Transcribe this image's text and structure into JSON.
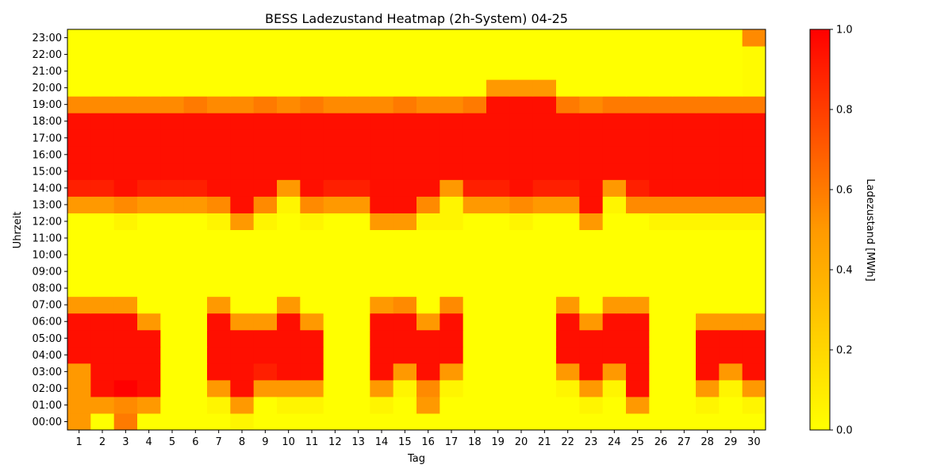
{
  "chart_data": {
    "type": "heatmap",
    "title": "BESS Ladezustand Heatmap (2h-System) 04-25",
    "xlabel": "Tag",
    "ylabel": "Uhrzeit",
    "x": [
      1,
      2,
      3,
      4,
      5,
      6,
      7,
      8,
      9,
      10,
      11,
      12,
      13,
      14,
      15,
      16,
      17,
      18,
      19,
      20,
      21,
      22,
      23,
      24,
      25,
      26,
      27,
      28,
      29,
      30
    ],
    "y": [
      "00:00",
      "01:00",
      "02:00",
      "03:00",
      "04:00",
      "05:00",
      "06:00",
      "07:00",
      "08:00",
      "09:00",
      "10:00",
      "11:00",
      "12:00",
      "13:00",
      "14:00",
      "15:00",
      "16:00",
      "17:00",
      "18:00",
      "19:00",
      "20:00",
      "21:00",
      "22:00",
      "23:00"
    ],
    "values": [
      [
        0.5,
        0,
        0.6,
        0,
        0,
        0,
        0,
        0.05,
        0,
        0,
        0,
        0,
        0,
        0,
        0,
        0,
        0,
        0,
        0,
        0,
        0,
        0,
        0,
        0,
        0,
        0,
        0,
        0,
        0,
        0
      ],
      [
        0.5,
        0.5,
        0.55,
        0.5,
        0,
        0,
        0.05,
        0.5,
        0,
        0.05,
        0.05,
        0,
        0,
        0.05,
        0,
        0.5,
        0,
        0,
        0,
        0,
        0,
        0,
        0.05,
        0,
        0.5,
        0,
        0,
        0.05,
        0,
        0.05
      ],
      [
        0.5,
        0.95,
        1.0,
        0.95,
        0,
        0,
        0.5,
        0.95,
        0.5,
        0.5,
        0.5,
        0,
        0,
        0.5,
        0.05,
        0.55,
        0.05,
        0,
        0,
        0,
        0,
        0.05,
        0.5,
        0.05,
        0.95,
        0,
        0,
        0.5,
        0.05,
        0.5
      ],
      [
        0.5,
        0.95,
        0.95,
        0.95,
        0,
        0,
        0.95,
        0.95,
        0.9,
        0.95,
        0.95,
        0,
        0,
        0.95,
        0.5,
        0.95,
        0.5,
        0,
        0,
        0,
        0,
        0.5,
        0.95,
        0.5,
        0.95,
        0,
        0,
        0.95,
        0.5,
        0.95
      ],
      [
        0.95,
        0.95,
        0.95,
        0.95,
        0,
        0,
        0.95,
        0.95,
        0.95,
        0.95,
        0.95,
        0,
        0,
        0.95,
        0.95,
        0.95,
        0.95,
        0,
        0,
        0,
        0,
        0.95,
        0.95,
        0.95,
        0.95,
        0,
        0,
        0.95,
        0.95,
        0.95
      ],
      [
        0.95,
        0.95,
        0.95,
        0.95,
        0,
        0,
        0.95,
        0.95,
        0.95,
        0.95,
        0.95,
        0,
        0,
        0.95,
        0.95,
        0.95,
        0.95,
        0,
        0,
        0,
        0,
        0.95,
        0.95,
        0.95,
        0.95,
        0,
        0,
        0.95,
        0.95,
        0.95
      ],
      [
        0.95,
        0.95,
        0.95,
        0.5,
        0,
        0,
        0.95,
        0.5,
        0.5,
        0.95,
        0.5,
        0,
        0,
        0.95,
        0.95,
        0.5,
        0.95,
        0,
        0,
        0,
        0,
        0.95,
        0.5,
        0.95,
        0.95,
        0,
        0,
        0.5,
        0.5,
        0.5
      ],
      [
        0.5,
        0.5,
        0.5,
        0,
        0,
        0,
        0.5,
        0,
        0,
        0.5,
        0,
        0,
        0,
        0.5,
        0.55,
        0,
        0.55,
        0,
        0,
        0,
        0,
        0.5,
        0,
        0.5,
        0.5,
        0,
        0,
        0,
        0,
        0
      ],
      [
        0,
        0,
        0,
        0,
        0,
        0,
        0,
        0,
        0,
        0,
        0,
        0,
        0,
        0,
        0,
        0,
        0,
        0,
        0,
        0,
        0,
        0,
        0,
        0,
        0,
        0,
        0,
        0,
        0,
        0
      ],
      [
        0,
        0,
        0,
        0,
        0,
        0,
        0,
        0,
        0,
        0,
        0,
        0,
        0,
        0,
        0,
        0,
        0,
        0,
        0,
        0,
        0,
        0,
        0,
        0,
        0,
        0,
        0,
        0,
        0,
        0
      ],
      [
        0,
        0,
        0,
        0,
        0,
        0,
        0,
        0,
        0,
        0,
        0,
        0,
        0,
        0,
        0,
        0,
        0,
        0,
        0,
        0,
        0,
        0,
        0,
        0,
        0,
        0,
        0,
        0,
        0,
        0
      ],
      [
        0,
        0,
        0,
        0,
        0,
        0,
        0,
        0,
        0,
        0,
        0,
        0,
        0,
        0,
        0,
        0,
        0,
        0,
        0,
        0,
        0,
        0,
        0,
        0,
        0,
        0,
        0,
        0,
        0,
        0
      ],
      [
        0,
        0,
        0.05,
        0,
        0,
        0,
        0.05,
        0.5,
        0.05,
        0,
        0.05,
        0,
        0,
        0.5,
        0.5,
        0.05,
        0.05,
        0,
        0,
        0.05,
        0,
        0,
        0.5,
        0,
        0,
        0.05,
        0.05,
        0.05,
        0.05,
        0.05
      ],
      [
        0.5,
        0.5,
        0.55,
        0.5,
        0.5,
        0.5,
        0.55,
        0.95,
        0.55,
        0.05,
        0.55,
        0.5,
        0.5,
        0.95,
        0.95,
        0.55,
        0.05,
        0.5,
        0.5,
        0.55,
        0.5,
        0.5,
        0.95,
        0.05,
        0.55,
        0.55,
        0.55,
        0.55,
        0.55,
        0.55
      ],
      [
        0.9,
        0.9,
        0.95,
        0.9,
        0.9,
        0.9,
        0.95,
        0.95,
        0.95,
        0.5,
        0.95,
        0.9,
        0.9,
        0.95,
        0.95,
        0.95,
        0.5,
        0.9,
        0.9,
        0.95,
        0.9,
        0.9,
        0.95,
        0.5,
        0.9,
        0.95,
        0.95,
        0.95,
        0.95,
        0.95
      ],
      [
        0.95,
        0.95,
        0.95,
        0.95,
        0.95,
        0.95,
        0.95,
        0.95,
        0.95,
        0.95,
        0.95,
        0.95,
        0.95,
        0.95,
        0.95,
        0.95,
        0.95,
        0.95,
        0.95,
        0.95,
        0.95,
        0.95,
        0.95,
        0.95,
        0.95,
        0.95,
        0.95,
        0.95,
        0.95,
        0.95
      ],
      [
        0.95,
        0.95,
        0.95,
        0.95,
        0.95,
        0.95,
        0.95,
        0.95,
        0.95,
        0.95,
        0.95,
        0.95,
        0.95,
        0.95,
        0.95,
        0.95,
        0.95,
        0.95,
        0.95,
        0.95,
        0.95,
        0.95,
        0.95,
        0.95,
        0.95,
        0.95,
        0.95,
        0.95,
        0.95,
        0.95
      ],
      [
        0.95,
        0.95,
        0.95,
        0.95,
        0.95,
        0.95,
        0.95,
        0.95,
        0.95,
        0.95,
        0.95,
        0.95,
        0.95,
        0.95,
        0.95,
        0.95,
        0.95,
        0.95,
        0.95,
        0.95,
        0.95,
        0.95,
        0.95,
        0.95,
        0.95,
        0.95,
        0.95,
        0.95,
        0.95,
        0.95
      ],
      [
        0.95,
        0.95,
        0.95,
        0.95,
        0.95,
        0.95,
        0.95,
        0.95,
        0.95,
        0.95,
        0.95,
        0.95,
        0.95,
        0.95,
        0.95,
        0.95,
        0.95,
        0.95,
        0.95,
        0.95,
        0.95,
        0.95,
        0.95,
        0.95,
        0.95,
        0.95,
        0.95,
        0.95,
        0.95,
        0.95
      ],
      [
        0.55,
        0.55,
        0.55,
        0.55,
        0.55,
        0.6,
        0.55,
        0.55,
        0.6,
        0.55,
        0.6,
        0.55,
        0.55,
        0.55,
        0.6,
        0.55,
        0.55,
        0.6,
        0.95,
        0.95,
        0.95,
        0.6,
        0.55,
        0.6,
        0.6,
        0.6,
        0.6,
        0.6,
        0.6,
        0.6
      ],
      [
        0,
        0,
        0,
        0,
        0,
        0,
        0,
        0,
        0,
        0,
        0,
        0,
        0,
        0,
        0,
        0,
        0,
        0,
        0.5,
        0.5,
        0.5,
        0,
        0,
        0,
        0,
        0,
        0,
        0,
        0,
        0.02
      ],
      [
        0,
        0,
        0,
        0,
        0,
        0,
        0,
        0,
        0,
        0,
        0,
        0,
        0,
        0,
        0,
        0,
        0,
        0,
        0,
        0,
        0,
        0,
        0,
        0,
        0,
        0,
        0,
        0,
        0,
        0.02
      ],
      [
        0,
        0,
        0,
        0,
        0,
        0,
        0,
        0,
        0,
        0,
        0,
        0,
        0,
        0,
        0,
        0,
        0,
        0,
        0,
        0,
        0,
        0,
        0,
        0,
        0,
        0,
        0,
        0,
        0,
        0.02
      ],
      [
        0,
        0,
        0,
        0,
        0,
        0,
        0,
        0,
        0,
        0,
        0,
        0,
        0,
        0,
        0,
        0,
        0,
        0,
        0,
        0,
        0,
        0,
        0,
        0,
        0,
        0,
        0,
        0,
        0,
        0.55
      ]
    ],
    "colorbar": {
      "label": "Ladezustand [MWh]",
      "vmin": 0.0,
      "vmax": 1.0,
      "ticks": [
        "0.0",
        "0.2",
        "0.4",
        "0.6",
        "0.8",
        "1.0"
      ],
      "colors": [
        "#ffff00",
        "#ff9900",
        "#ff0000"
      ]
    },
    "grid": false
  }
}
